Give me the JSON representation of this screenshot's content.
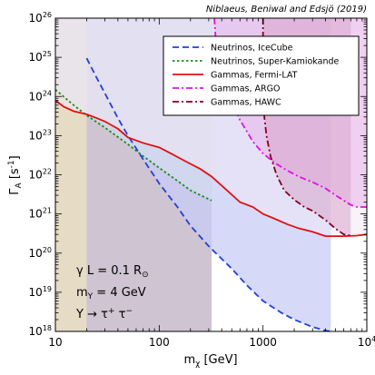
{
  "credit": "Niblaeus, Beniwal and Edsjö (2019)",
  "chart_data": {
    "type": "line",
    "xscale": "log",
    "yscale": "log",
    "xlim": [
      10,
      10000
    ],
    "ylim": [
      1e+18,
      1e+26
    ],
    "xlabel": {
      "main": "m",
      "sub": "χ",
      "unit": " [GeV]"
    },
    "ylabel": {
      "main": "Γ",
      "sub": "A",
      "unit": " [s",
      "sup": "-1",
      "close": "]"
    },
    "x_ticks": [
      {
        "value": 10,
        "label": "10"
      },
      {
        "value": 100,
        "label": "100"
      },
      {
        "value": 1000,
        "label": "1000"
      },
      {
        "value": 10000,
        "base": "10",
        "exp": "4"
      }
    ],
    "y_ticks": [
      {
        "value": 1e+18,
        "base": "10",
        "exp": "18"
      },
      {
        "value": 1e+19,
        "base": "10",
        "exp": "19"
      },
      {
        "value": 1e+20,
        "base": "10",
        "exp": "20"
      },
      {
        "value": 1e+21,
        "base": "10",
        "exp": "21"
      },
      {
        "value": 1e+22,
        "base": "10",
        "exp": "22"
      },
      {
        "value": 1e+23,
        "base": "10",
        "exp": "23"
      },
      {
        "value": 1e+24,
        "base": "10",
        "exp": "24"
      },
      {
        "value": 1e+25,
        "base": "10",
        "exp": "25"
      },
      {
        "value": 1e+26,
        "base": "10",
        "exp": "26"
      }
    ],
    "grid": false,
    "legend_position": "top-right",
    "series": [
      {
        "name": "Neutrinos, IceCube",
        "color": "#1f3fe0",
        "dash": "dashed",
        "fill": "#c8ccf6",
        "points": [
          [
            20,
            9.5e+24
          ],
          [
            25,
            3e+24
          ],
          [
            30,
            1.2e+24
          ],
          [
            40,
            2.8e+23
          ],
          [
            50,
            1e+23
          ],
          [
            70,
            2.5e+22
          ],
          [
            100,
            6e+21
          ],
          [
            150,
            1.5e+21
          ],
          [
            200,
            5e+20
          ],
          [
            300,
            1.5e+20
          ],
          [
            500,
            4e+19
          ],
          [
            700,
            1.5e+19
          ],
          [
            1000,
            6e+18
          ],
          [
            1500,
            3e+18
          ],
          [
            2000,
            2e+18
          ],
          [
            3000,
            1.3e+18
          ],
          [
            4000,
            1.05e+18
          ],
          [
            4500,
            1e+18
          ]
        ]
      },
      {
        "name": "Neutrinos, Super-Kamiokande",
        "color": "#1a8a1a",
        "dash": "dotted",
        "fill": "#d5e1ee",
        "points": [
          [
            10,
            1.5e+24
          ],
          [
            15,
            6e+23
          ],
          [
            20,
            3.3e+23
          ],
          [
            30,
            1.6e+23
          ],
          [
            50,
            6e+22
          ],
          [
            70,
            3e+22
          ],
          [
            100,
            1.5e+22
          ],
          [
            150,
            7e+21
          ],
          [
            200,
            4e+21
          ],
          [
            320,
            2.2e+21
          ]
        ]
      },
      {
        "name": "Gammas, Fermi-LAT",
        "color": "#e01010",
        "dash": "solid",
        "fill": "#f3e7f4",
        "points": [
          [
            10,
            8e+23
          ],
          [
            12,
            5.5e+23
          ],
          [
            15,
            4.2e+23
          ],
          [
            20,
            3.5e+23
          ],
          [
            25,
            2.8e+23
          ],
          [
            30,
            2.3e+23
          ],
          [
            40,
            1.5e+23
          ],
          [
            50,
            9e+22
          ],
          [
            70,
            6.5e+22
          ],
          [
            100,
            5e+22
          ],
          [
            130,
            3.5e+22
          ],
          [
            180,
            2.2e+22
          ],
          [
            250,
            1.4e+22
          ],
          [
            320,
            9e+21
          ],
          [
            450,
            4e+21
          ],
          [
            600,
            2e+21
          ],
          [
            800,
            1.5e+21
          ],
          [
            1000,
            1e+21
          ],
          [
            1300,
            7.5e+20
          ],
          [
            1700,
            5.5e+20
          ],
          [
            2200,
            4.3e+20
          ],
          [
            3000,
            3.5e+20
          ],
          [
            4000,
            2.7e+20
          ],
          [
            6000,
            2.7e+20
          ],
          [
            8000,
            2.8e+20
          ],
          [
            10000,
            3e+20
          ]
        ]
      },
      {
        "name": "Gammas, ARGO",
        "color": "#e010e0",
        "dash": "dashdot",
        "fill": "#e9b4e9",
        "points": [
          [
            340,
            1e+26
          ],
          [
            350,
            3e+25
          ],
          [
            380,
            8e+24
          ],
          [
            430,
            2.2e+24
          ],
          [
            500,
            7e+23
          ],
          [
            600,
            2.5e+23
          ],
          [
            800,
            7e+22
          ],
          [
            1000,
            3.5e+22
          ],
          [
            1300,
            2e+22
          ],
          [
            1700,
            1.3e+22
          ],
          [
            2200,
            9e+21
          ],
          [
            3000,
            6.5e+21
          ],
          [
            4000,
            4.5e+21
          ],
          [
            5000,
            3e+21
          ],
          [
            6000,
            2.2e+21
          ],
          [
            7000,
            1.7e+21
          ],
          [
            8000,
            1.5e+21
          ],
          [
            10000,
            1.5e+21
          ]
        ]
      },
      {
        "name": "Gammas, HAWC",
        "color": "#800020",
        "dash": "dashdot",
        "fill": "#d9a5cc",
        "points": [
          [
            1000,
            1e+26
          ],
          [
            1000,
            1e+25
          ],
          [
            1000,
            3e+24
          ],
          [
            1010,
            1e+24
          ],
          [
            1030,
            3e+23
          ],
          [
            1080,
            1e+23
          ],
          [
            1180,
            3e+22
          ],
          [
            1350,
            1e+22
          ],
          [
            1600,
            4e+21
          ],
          [
            2000,
            2.3e+21
          ],
          [
            2500,
            1.5e+21
          ],
          [
            3000,
            1.2e+21
          ],
          [
            4000,
            7e+20
          ],
          [
            5000,
            4.2e+20
          ],
          [
            6000,
            3e+20
          ],
          [
            7000,
            2.8e+20
          ]
        ]
      }
    ],
    "shaded_regions": [
      {
        "name": "low-mass-region",
        "fill": "#e6dcc6",
        "x": [
          10,
          20
        ]
      },
      {
        "name": "super-k-mass-range",
        "fill": "#cec4d2",
        "x": [
          20,
          320
        ]
      }
    ],
    "annotations": [
      {
        "prefix": "γ L = 0.1 R",
        "suffix": "⊙"
      },
      {
        "prefix": "m",
        "sub": "Y",
        "suffix": " = 4 GeV"
      },
      {
        "prefix": "Y → τ",
        "sup": "+",
        "suffix2": " τ",
        "sup2": "−"
      }
    ]
  }
}
